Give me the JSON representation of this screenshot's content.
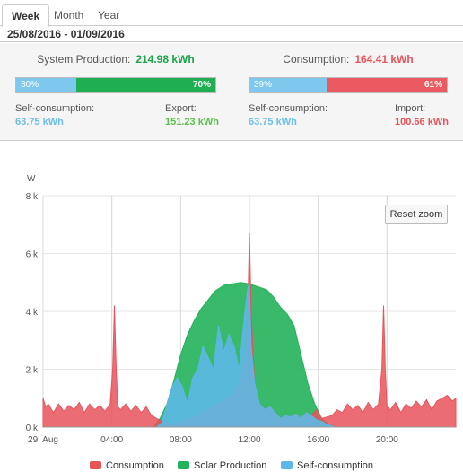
{
  "tabs": [
    {
      "label": "Week",
      "active": true
    },
    {
      "label": "Month",
      "active": false
    },
    {
      "label": "Year",
      "active": false
    }
  ],
  "date_range": "25/08/2016 - 01/09/2016",
  "production": {
    "title": "System Production:",
    "value": "214.98 kWh",
    "self_pct": "30%",
    "export_pct": "70%",
    "self_label": "Self-consumption:",
    "self_value": "63.75 kWh",
    "export_label": "Export:",
    "export_value": "151.23 kWh"
  },
  "consumption": {
    "title": "Consumption:",
    "value": "164.41 kWh",
    "self_pct": "39%",
    "import_pct": "61%",
    "self_label": "Self-consumption:",
    "self_value": "63.75 kWh",
    "import_label": "Import:",
    "import_value": "100.66 kWh"
  },
  "colors": {
    "consumption": "#e8535a",
    "solar": "#22b35a",
    "self": "#5cb8e6",
    "production_text": "#1aa34a",
    "consumption_text": "#e8535a",
    "self_text": "#6cbfe8",
    "export_text": "#5cc04c"
  },
  "reset_zoom": "Reset zoom",
  "legend": [
    "Consumption",
    "Solar Production",
    "Self-consumption"
  ],
  "chart_data": {
    "type": "area",
    "ylabel": "W",
    "yticks": [
      "0 k",
      "2 k",
      "4 k",
      "6 k",
      "8 k"
    ],
    "ylim": [
      0,
      8000
    ],
    "xlim": [
      0,
      24
    ],
    "xticks": [
      {
        "label": "29. Aug",
        "x": 0
      },
      {
        "label": "04:00",
        "x": 4
      },
      {
        "label": "08:00",
        "x": 8
      },
      {
        "label": "12:00",
        "x": 12
      },
      {
        "label": "16:00",
        "x": 16
      },
      {
        "label": "20:00",
        "x": 20
      }
    ],
    "series": [
      {
        "name": "Solar Production",
        "x": [
          0,
          6.4,
          6.8,
          7.2,
          7.6,
          8,
          8.4,
          8.8,
          9.2,
          9.6,
          10,
          10.5,
          11,
          11.5,
          12,
          12.5,
          13,
          13.4,
          13.8,
          14.2,
          14.6,
          15,
          15.4,
          15.8,
          16.2,
          16.6,
          17,
          24
        ],
        "values": [
          0,
          0,
          300,
          800,
          1600,
          2500,
          3200,
          3700,
          4100,
          4400,
          4700,
          4900,
          4950,
          5000,
          4950,
          4850,
          4750,
          4500,
          4150,
          3900,
          3500,
          2500,
          1500,
          800,
          300,
          100,
          0,
          0
        ]
      },
      {
        "name": "Consumption",
        "x": [
          0,
          0.15,
          0.3,
          0.6,
          0.9,
          1.2,
          1.5,
          1.8,
          2.1,
          2.4,
          2.7,
          3,
          3.3,
          3.6,
          3.9,
          4.05,
          4.15,
          4.25,
          4.35,
          4.5,
          4.8,
          5.1,
          5.4,
          5.7,
          6,
          6.3,
          6.6,
          6.9,
          7.2,
          7.5,
          7.8,
          8.1,
          8.4,
          8.7,
          9,
          9.3,
          9.6,
          9.9,
          10.2,
          10.5,
          10.8,
          11.1,
          11.4,
          11.7,
          11.9,
          12,
          12.1,
          12.3,
          12.6,
          12.9,
          13.2,
          13.5,
          13.8,
          14.1,
          14.4,
          14.7,
          15,
          15.3,
          15.6,
          15.9,
          16.2,
          16.5,
          16.8,
          17.1,
          17.4,
          17.7,
          18,
          18.3,
          18.6,
          18.9,
          19.2,
          19.5,
          19.7,
          19.8,
          19.9,
          20,
          20.2,
          20.5,
          20.8,
          21.1,
          21.4,
          21.7,
          22,
          22.3,
          22.6,
          22.9,
          23.2,
          23.5,
          23.8,
          24
        ],
        "values": [
          1000,
          700,
          800,
          500,
          800,
          550,
          750,
          600,
          850,
          500,
          800,
          600,
          750,
          550,
          800,
          2000,
          4200,
          2000,
          700,
          600,
          800,
          550,
          750,
          500,
          700,
          400,
          300,
          200,
          150,
          100,
          150,
          200,
          250,
          300,
          400,
          500,
          600,
          700,
          800,
          900,
          1000,
          1200,
          1500,
          2000,
          4000,
          6700,
          4000,
          1500,
          800,
          600,
          700,
          500,
          300,
          400,
          350,
          450,
          300,
          500,
          400,
          600,
          300,
          350,
          400,
          600,
          500,
          800,
          600,
          750,
          500,
          850,
          600,
          800,
          2000,
          4200,
          2000,
          700,
          600,
          850,
          500,
          800,
          650,
          900,
          700,
          950,
          600,
          900,
          1000,
          1100,
          900,
          1000
        ]
      },
      {
        "name": "Self-consumption",
        "x": [
          0,
          6.6,
          6.9,
          7.2,
          7.5,
          7.8,
          8.1,
          8.4,
          8.7,
          9,
          9.3,
          9.6,
          9.9,
          10.2,
          10.5,
          10.8,
          11.1,
          11.4,
          11.7,
          11.9,
          12,
          12.1,
          12.3,
          12.6,
          12.9,
          13.2,
          13.5,
          13.8,
          14.1,
          14.4,
          14.7,
          15,
          15.3,
          15.6,
          15.9,
          16.2,
          16.5,
          17,
          24
        ],
        "values": [
          0,
          0,
          150,
          800,
          1400,
          1700,
          1400,
          800,
          1700,
          2000,
          2800,
          2400,
          2000,
          3500,
          2600,
          3200,
          2800,
          2000,
          3800,
          4800,
          5000,
          2800,
          1500,
          800,
          600,
          700,
          500,
          300,
          400,
          350,
          450,
          300,
          500,
          400,
          250,
          200,
          100,
          0,
          0
        ]
      }
    ],
    "grid": true,
    "legend_position": "bottom"
  }
}
